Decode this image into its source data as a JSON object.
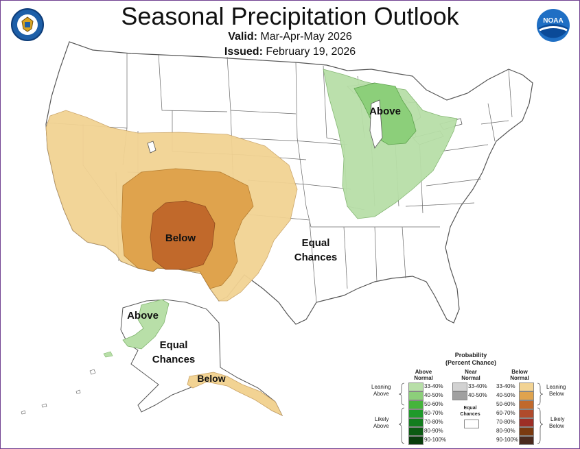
{
  "header": {
    "title": "Seasonal Precipitation Outlook",
    "valid_label": "Valid:",
    "valid_value": "Mar-Apr-May 2026",
    "issued_label": "Issued:",
    "issued_value": "February 19, 2026",
    "noaa_text": "NOAA"
  },
  "map": {
    "labels": {
      "above_conus": "Above",
      "below_conus": "Below",
      "equal_conus_1": "Equal",
      "equal_conus_2": "Chances",
      "above_ak": "Above",
      "equal_ak_1": "Equal",
      "equal_ak_2": "Chances",
      "below_ak": "Below"
    },
    "colors": {
      "below_33_40": "#f2d393",
      "below_40_50": "#dfa34d",
      "below_50_60": "#c1692b",
      "above_33_40": "#b8dfa8",
      "above_40_50": "#8ccf7a"
    }
  },
  "legend": {
    "title": "Probability",
    "subtitle": "(Percent Chance)",
    "above_header_1": "Above",
    "above_header_2": "Normal",
    "near_header_1": "Near",
    "near_header_2": "Normal",
    "below_header_1": "Below",
    "below_header_2": "Normal",
    "leaning_above_1": "Leaning",
    "leaning_above_2": "Above",
    "likely_above_1": "Likely",
    "likely_above_2": "Above",
    "leaning_below_1": "Leaning",
    "leaning_below_2": "Below",
    "likely_below_1": "Likely",
    "likely_below_2": "Below",
    "equal_1": "Equal",
    "equal_2": "Chances",
    "above": [
      {
        "range": "33-40%",
        "color": "#b8dfa8"
      },
      {
        "range": "40-50%",
        "color": "#8ccf7a"
      },
      {
        "range": "50-60%",
        "color": "#45b43c"
      },
      {
        "range": "60-70%",
        "color": "#1f9a2a"
      },
      {
        "range": "70-80%",
        "color": "#137d1e"
      },
      {
        "range": "80-90%",
        "color": "#0b5a12"
      },
      {
        "range": "90-100%",
        "color": "#083d0c"
      }
    ],
    "near": [
      {
        "range": "33-40%",
        "color": "#d2d2d2"
      },
      {
        "range": "40-50%",
        "color": "#a0a0a0"
      }
    ],
    "below": [
      {
        "range": "33-40%",
        "color": "#f2d393"
      },
      {
        "range": "40-50%",
        "color": "#dfa34d"
      },
      {
        "range": "50-60%",
        "color": "#c1692b"
      },
      {
        "range": "60-70%",
        "color": "#b04b2c"
      },
      {
        "range": "70-80%",
        "color": "#9d2f26"
      },
      {
        "range": "80-90%",
        "color": "#7a3a10"
      },
      {
        "range": "90-100%",
        "color": "#4a2a1e"
      }
    ]
  }
}
